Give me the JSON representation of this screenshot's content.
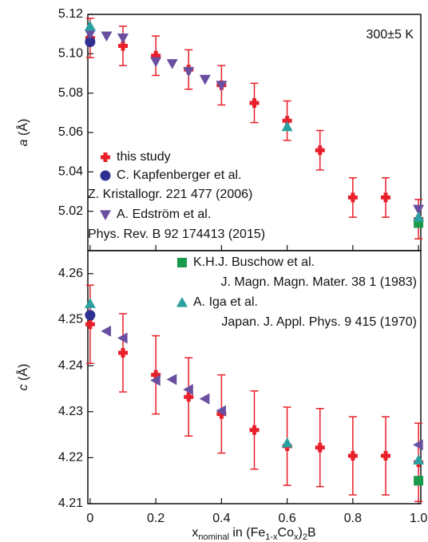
{
  "chart_data": [
    {
      "type": "scatter",
      "ylabel": [
        "a",
        " (Å)"
      ],
      "annotation": "300±5 K",
      "xlim": [
        -0.007,
        1.007
      ],
      "ylim": [
        5.0,
        5.12
      ],
      "yticks": [
        5.02,
        5.04,
        5.06,
        5.08,
        {
          "value": 5.1,
          "label": "5.10"
        },
        5.12
      ],
      "series": [
        {
          "name": "this study",
          "color": "#e8202a",
          "marker": "plus",
          "x": [
            0,
            0.1,
            0.2,
            0.3,
            0.4,
            0.5,
            0.6,
            0.7,
            0.8,
            0.9,
            1.0
          ],
          "values": [
            5.108,
            5.104,
            5.099,
            5.092,
            5.084,
            5.075,
            5.066,
            5.051,
            5.027,
            5.027,
            5.016
          ],
          "errors": [
            0.01,
            0.01,
            0.01,
            0.01,
            0.01,
            0.01,
            0.01,
            0.01,
            0.01,
            0.01,
            0.01
          ]
        },
        {
          "name": "C. Kapfenberger et al.",
          "reference": "Z. Kristallogr. 221 477 (2006)",
          "color": "#2e3192",
          "marker": "circle",
          "x": [
            0
          ],
          "values": [
            5.106
          ]
        },
        {
          "name": "A. Edström et al.",
          "reference": "Phys. Rev. B 92 174413 (2015)",
          "color": "#6a4fa0",
          "marker": "triangle-down",
          "x": [
            0,
            0.05,
            0.1,
            0.2,
            0.25,
            0.3,
            0.35,
            0.4,
            1.0
          ],
          "values": [
            5.11,
            5.109,
            5.108,
            5.096,
            5.095,
            5.091,
            5.087,
            5.084,
            5.021
          ]
        },
        {
          "color": "#1a9a4a",
          "marker": "square",
          "x": [
            1.0
          ],
          "values": [
            5.014
          ]
        },
        {
          "color": "#2aa1a0",
          "marker": "triangle-up",
          "x": [
            0,
            0.6,
            1.0
          ],
          "values": [
            5.114,
            5.063,
            5.017
          ]
        }
      ]
    },
    {
      "type": "scatter",
      "ylabel": [
        "c",
        " (Å)"
      ],
      "xlabel": [
        "x",
        "nominal",
        " in (Fe",
        "1-x",
        "Co",
        "x",
        ")",
        "2",
        "B"
      ],
      "xlim": [
        -0.007,
        1.007
      ],
      "ylim": [
        4.21,
        4.265
      ],
      "xticks": [
        0,
        0.2,
        0.4,
        0.6,
        0.8,
        {
          "value": 1.0,
          "label": "1.0"
        }
      ],
      "yticks": [
        4.21,
        4.22,
        4.23,
        4.24,
        4.25,
        4.26
      ],
      "series": [
        {
          "color": "#e8202a",
          "marker": "plus",
          "x": [
            0,
            0.1,
            0.2,
            0.3,
            0.4,
            0.5,
            0.6,
            0.7,
            0.8,
            0.9,
            1.0
          ],
          "values": [
            4.249,
            4.2428,
            4.238,
            4.2332,
            4.2295,
            4.226,
            4.2225,
            4.2222,
            4.2204,
            4.2204,
            4.219
          ],
          "errors": [
            0.0085,
            0.0085,
            0.0085,
            0.0085,
            0.0085,
            0.0085,
            0.0085,
            0.0085,
            0.0085,
            0.0085,
            0.0085
          ]
        },
        {
          "color": "#2e3192",
          "marker": "circle",
          "x": [
            0
          ],
          "values": [
            4.251
          ]
        },
        {
          "color": "#6a4fa0",
          "marker": "triangle-left",
          "x": [
            0.05,
            0.1,
            0.2,
            0.25,
            0.3,
            0.35,
            0.4,
            1.0
          ],
          "values": [
            4.2475,
            4.246,
            4.2368,
            4.237,
            4.2348,
            4.2328,
            4.2302,
            4.2228
          ]
        },
        {
          "name": "K.H.J. Buschow et al.",
          "reference": "J. Magn. Magn. Mater. 38 1 (1983)",
          "color": "#1a9a4a",
          "marker": "square",
          "x": [
            1.0
          ],
          "values": [
            4.215
          ]
        },
        {
          "name": "A. Iga et al.",
          "reference": "Japan. J. Appl. Phys. 9 415 (1970)",
          "color": "#2aa1a0",
          "marker": "triangle-up",
          "x": [
            0,
            0.6,
            1.0
          ],
          "values": [
            4.2535,
            4.2232,
            4.2195
          ]
        }
      ]
    }
  ]
}
